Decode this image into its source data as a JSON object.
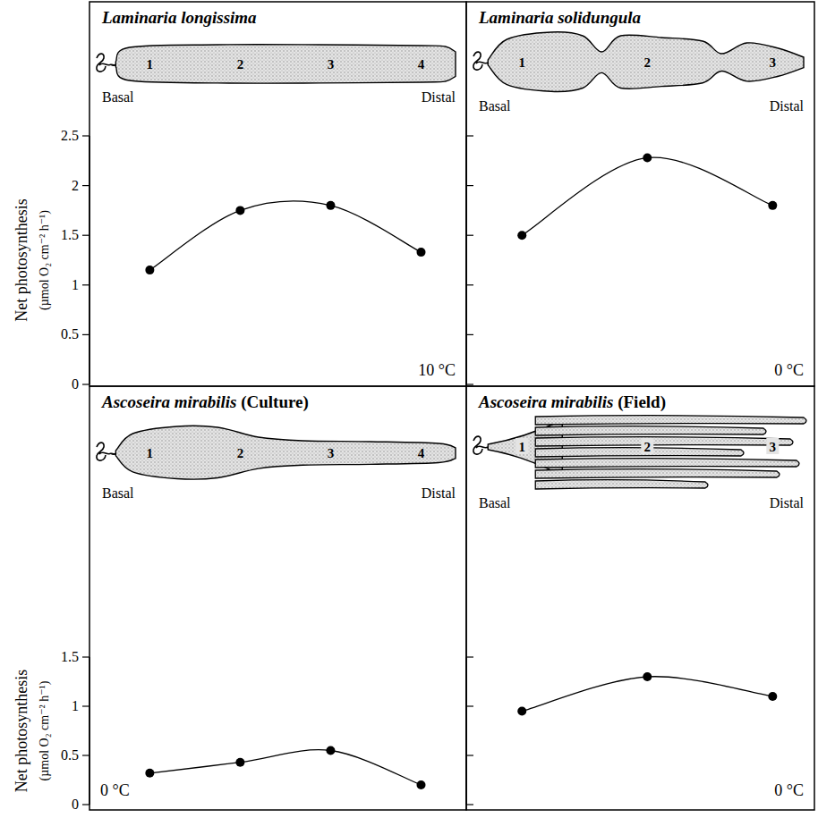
{
  "chart_data": [
    {
      "type": "line",
      "title": "Laminaria longissima",
      "ylabel": "Net photosynthesis (µmol O₂ cm⁻² h⁻¹)",
      "categories": [
        "1",
        "2",
        "3",
        "4"
      ],
      "values": [
        1.15,
        1.75,
        1.8,
        1.33
      ],
      "ylim": [
        0,
        2.5
      ],
      "yticks": [
        0,
        0.5,
        1,
        1.5,
        2,
        2.5
      ],
      "tick_labels": "y",
      "annotations": [
        "Basal",
        "Distal",
        "10 °C"
      ],
      "color": "#000000",
      "marker": "circle",
      "line_style": "smooth"
    },
    {
      "type": "line",
      "title": "Laminaria solidungula",
      "categories": [
        "1",
        "2",
        "3"
      ],
      "values": [
        1.5,
        2.28,
        1.8
      ],
      "ylim": [
        0,
        2.5
      ],
      "yticks": [
        0,
        0.5,
        1,
        1.5,
        2,
        2.5
      ],
      "tick_labels": false,
      "annotations": [
        "Basal",
        "Distal",
        "0 °C"
      ],
      "color": "#000000",
      "marker": "circle",
      "line_style": "smooth"
    },
    {
      "type": "line",
      "title": "Ascoseira mirabilis (Culture)",
      "ylabel": "Net photosynthesis (µmol O₂ cm⁻² h⁻¹)",
      "categories": [
        "1",
        "2",
        "3",
        "4"
      ],
      "values": [
        0.32,
        0.43,
        0.55,
        0.2
      ],
      "ylim": [
        0,
        1.5
      ],
      "yticks": [
        0,
        0.5,
        1,
        1.5
      ],
      "tick_labels": "y",
      "annotations": [
        "Basal",
        "Distal",
        "0 °C"
      ],
      "color": "#000000",
      "marker": "circle",
      "line_style": "smooth"
    },
    {
      "type": "line",
      "title": "Ascoseira mirabilis (Field)",
      "categories": [
        "1",
        "2",
        "3"
      ],
      "values": [
        0.95,
        1.3,
        1.1
      ],
      "ylim": [
        0,
        1.5
      ],
      "yticks": [
        0,
        0.5,
        1,
        1.5
      ],
      "tick_labels": false,
      "annotations": [
        "Basal",
        "Distal",
        "0 °C"
      ],
      "color": "#000000",
      "marker": "circle",
      "line_style": "smooth"
    }
  ]
}
